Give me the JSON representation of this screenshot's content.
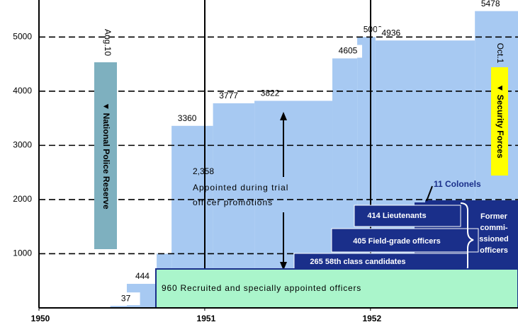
{
  "chart_data": {
    "type": "step",
    "x": [
      1950.43,
      1950.53,
      1950.71,
      1950.8,
      1951.05,
      1951.3,
      1951.77,
      1951.92,
      1952.03,
      1952.63
    ],
    "values": [
      37,
      444,
      1000,
      3360,
      3777,
      3822,
      4605,
      5000,
      4936,
      5478
    ],
    "value_labels": [
      "37",
      "444",
      null,
      "3360",
      "3777",
      "3822",
      "4605",
      "5000",
      "4936",
      "5478"
    ],
    "color": "#a7c9f2",
    "xlim": [
      1950,
      1952.89
    ],
    "xticks": [
      1950,
      1951,
      1952
    ],
    "ylim": [
      0,
      5500
    ],
    "yticks": [
      1000,
      2000,
      3000,
      4000,
      5000
    ],
    "grid": true,
    "annotations": {
      "aug": "Aug.10",
      "npr": "▼ National Police Reserve",
      "oct": "Oct.1",
      "sf": "▼ Security Forces",
      "trial_count": "2,358",
      "trial_text": [
        "Appointed during trial",
        "officer promotions"
      ],
      "colonels": "11 Colonels",
      "lieutenants": "414 Lieutenants",
      "field": "405 Field-grade officers",
      "candidates": "265 58th class candidates",
      "former": [
        "Former",
        "commi-",
        "ssioned",
        "officers"
      ],
      "recruited": "960 Recruited and specially appointed officers"
    }
  }
}
